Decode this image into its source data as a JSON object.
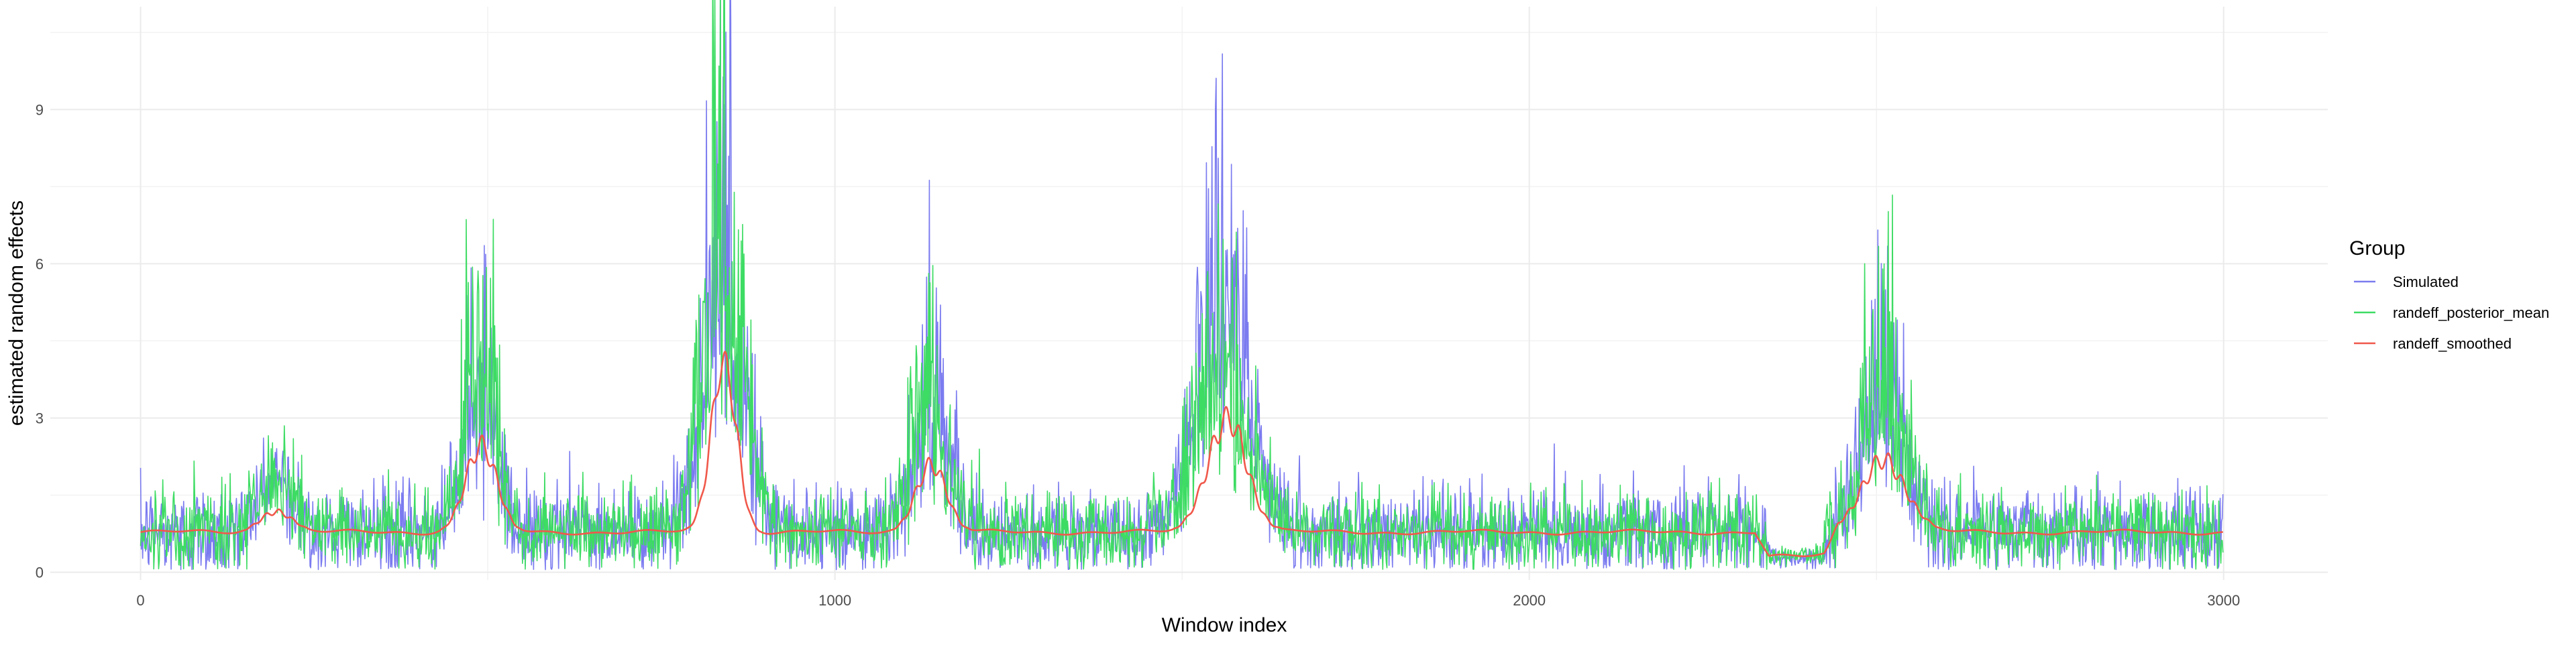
{
  "chart_data": {
    "type": "line",
    "title": "",
    "xlabel": "Window index",
    "ylabel": "estimated random effects",
    "xlim": [
      -130,
      3150
    ],
    "ylim": [
      -0.15,
      11.0
    ],
    "x_ticks": [
      0,
      1000,
      2000,
      3000
    ],
    "x_tick_labels": [
      "0",
      "1000",
      "2000",
      "3000"
    ],
    "y_ticks": [
      0,
      3,
      6,
      9
    ],
    "y_tick_labels": [
      "0",
      "3",
      "6",
      "9"
    ],
    "grid": true,
    "legend_position": "right",
    "legend_title": "Group",
    "n_points": 3000,
    "series": [
      {
        "name": "Simulated",
        "color": "#7b7bf0",
        "baseline": 0.78,
        "noise_sd": 0.45,
        "bursts": [
          {
            "center": 195,
            "width": 25,
            "peak": 2.6
          },
          {
            "center": 490,
            "width": 22,
            "peak": 6.3
          },
          {
            "center": 840,
            "width": 30,
            "peak": 10.7
          },
          {
            "center": 1138,
            "width": 25,
            "peak": 5.8
          },
          {
            "center": 1560,
            "width": 38,
            "peak": 9.7
          },
          {
            "center": 2510,
            "width": 30,
            "peak": 6.4
          }
        ],
        "dips": [
          {
            "start": 2350,
            "end": 2420,
            "level": 0.28
          }
        ]
      },
      {
        "name": "randeff_posterior_mean",
        "color": "#3ddc63",
        "baseline": 0.78,
        "noise_sd": 0.4,
        "bursts": [
          {
            "center": 195,
            "width": 25,
            "peak": 2.5
          },
          {
            "center": 490,
            "width": 22,
            "peak": 8.0
          },
          {
            "center": 840,
            "width": 30,
            "peak": 10.9
          },
          {
            "center": 1138,
            "width": 25,
            "peak": 5.5
          },
          {
            "center": 1560,
            "width": 38,
            "peak": 7.0
          },
          {
            "center": 2510,
            "width": 30,
            "peak": 6.8
          }
        ],
        "dips": [
          {
            "start": 2350,
            "end": 2420,
            "level": 0.32
          }
        ]
      },
      {
        "name": "randeff_smoothed",
        "color": "#f0584a",
        "baseline": 0.78,
        "bursts": [
          {
            "center": 195,
            "width": 22,
            "peak": 1.22
          },
          {
            "center": 490,
            "width": 22,
            "peak": 2.45
          },
          {
            "center": 840,
            "width": 18,
            "peak": 4.1
          },
          {
            "center": 1138,
            "width": 22,
            "peak": 2.1
          },
          {
            "center": 1565,
            "width": 28,
            "peak": 3.0
          },
          {
            "center": 2510,
            "width": 32,
            "peak": 2.2
          }
        ],
        "dips": [
          {
            "start": 2345,
            "end": 2425,
            "level": 0.3
          }
        ]
      }
    ]
  }
}
